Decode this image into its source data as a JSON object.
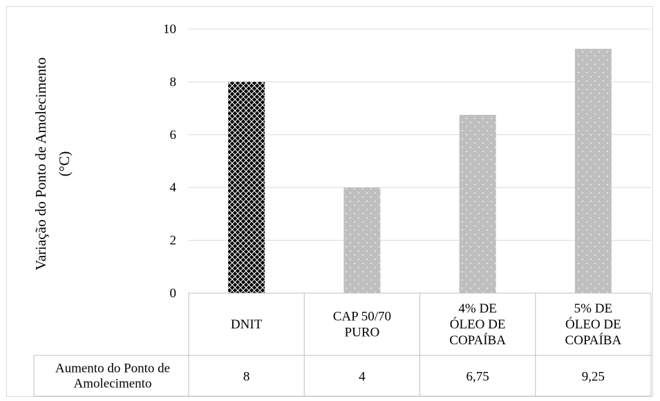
{
  "chart_data": {
    "type": "bar",
    "ylabel": "Variação do Ponto de Amolecimento (°C)",
    "ylabel_lines": [
      "Variação do Ponto de Amolecimento",
      "(°C)"
    ],
    "ylim": [
      0,
      10
    ],
    "yticks": [
      "0",
      "2",
      "4",
      "6",
      "8",
      "10"
    ],
    "ytick_values": [
      0,
      2,
      4,
      6,
      8,
      10
    ],
    "categories": [
      "DNIT",
      "CAP 50/70 PURO",
      "4% DE ÓLEO DE COPAÍBA",
      "5% DE ÓLEO DE COPAÍBA"
    ],
    "category_lines": [
      [
        "DNIT"
      ],
      [
        "CAP 50/70",
        "PURO"
      ],
      [
        "4% DE",
        "ÓLEO DE",
        "COPAÍBA"
      ],
      [
        "5% DE",
        "ÓLEO DE",
        "COPAÍBA"
      ]
    ],
    "series": [
      {
        "name": "Aumento do Ponto de Amolecimento",
        "name_lines": [
          "Aumento do Ponto de",
          "Amolecimento"
        ],
        "values": [
          8,
          4,
          6.75,
          9.25
        ],
        "value_labels": [
          "8",
          "4",
          "6,75",
          "9,25"
        ]
      }
    ],
    "bar_patterns": [
      "black-diamond-crosshatch",
      "gray-dotted",
      "gray-dotted",
      "gray-dotted"
    ],
    "colors": {
      "dark": "#000000",
      "gray": "#bfbfbf",
      "grid": "#d9d9d9"
    },
    "grid": true,
    "legend": "none",
    "data_table": true
  }
}
